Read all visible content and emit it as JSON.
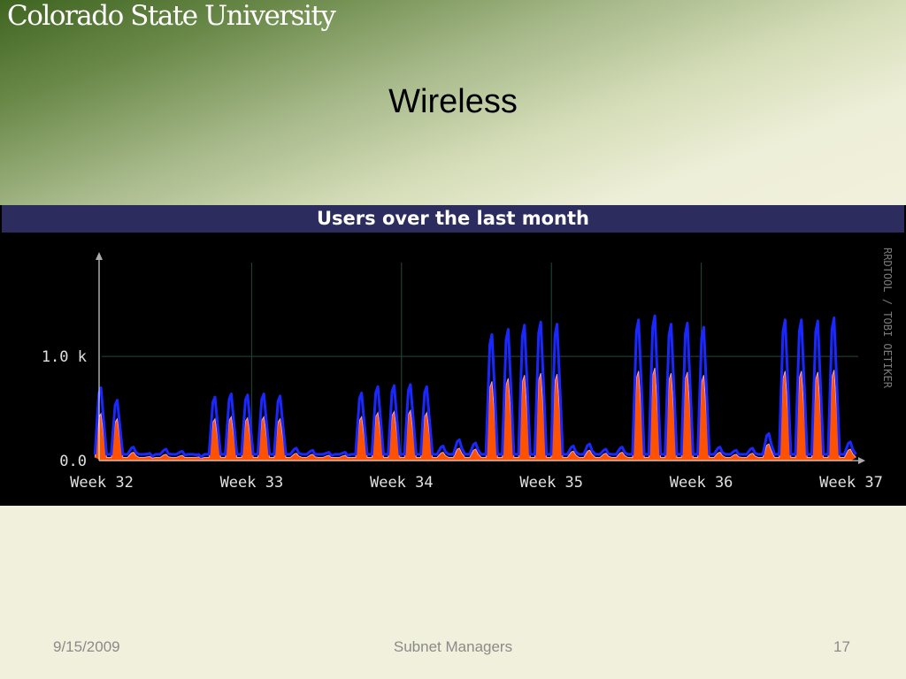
{
  "header": {
    "logo_text": "Colorado State University",
    "slide_title": "Wireless"
  },
  "footer": {
    "date": "9/15/2009",
    "center": "Subnet Managers",
    "page": "17"
  },
  "colors": {
    "outer_line": "#1a28ff",
    "fill": "#ff5200",
    "inner_line": "#f0a0c0"
  },
  "chart_data": {
    "type": "area",
    "title": "Users over the last month",
    "watermark": "RRDTOOL / TOBI OETIKER",
    "y_ticks": [
      {
        "value": 0,
        "label": "0.0"
      },
      {
        "value": 1000,
        "label": "1.0 k"
      }
    ],
    "x_ticks": [
      "Week 32",
      "Week 33",
      "Week 34",
      "Week 35",
      "Week 36",
      "Week 37"
    ],
    "ylim": [
      0,
      1900
    ],
    "xlim": [
      0,
      36
    ],
    "grid": true,
    "series": [
      {
        "role": "outer",
        "values": [
          700,
          580,
          130,
          70,
          110,
          90,
          60,
          610,
          640,
          630,
          640,
          620,
          120,
          100,
          80,
          80,
          650,
          710,
          720,
          730,
          710,
          140,
          200,
          170,
          1210,
          1260,
          1300,
          1330,
          1310,
          140,
          160,
          110,
          130,
          1350,
          1390,
          1310,
          1320,
          1280,
          130,
          100,
          120,
          260,
          1350,
          1350,
          1340,
          1370,
          180
        ]
      },
      {
        "role": "inner",
        "values": [
          450,
          400,
          80,
          40,
          60,
          50,
          35,
          400,
          420,
          410,
          420,
          400,
          70,
          60,
          50,
          50,
          420,
          460,
          470,
          480,
          460,
          80,
          120,
          110,
          760,
          790,
          820,
          840,
          830,
          90,
          100,
          70,
          80,
          860,
          890,
          840,
          850,
          820,
          80,
          60,
          70,
          160,
          860,
          860,
          850,
          870,
          110
        ]
      }
    ]
  }
}
